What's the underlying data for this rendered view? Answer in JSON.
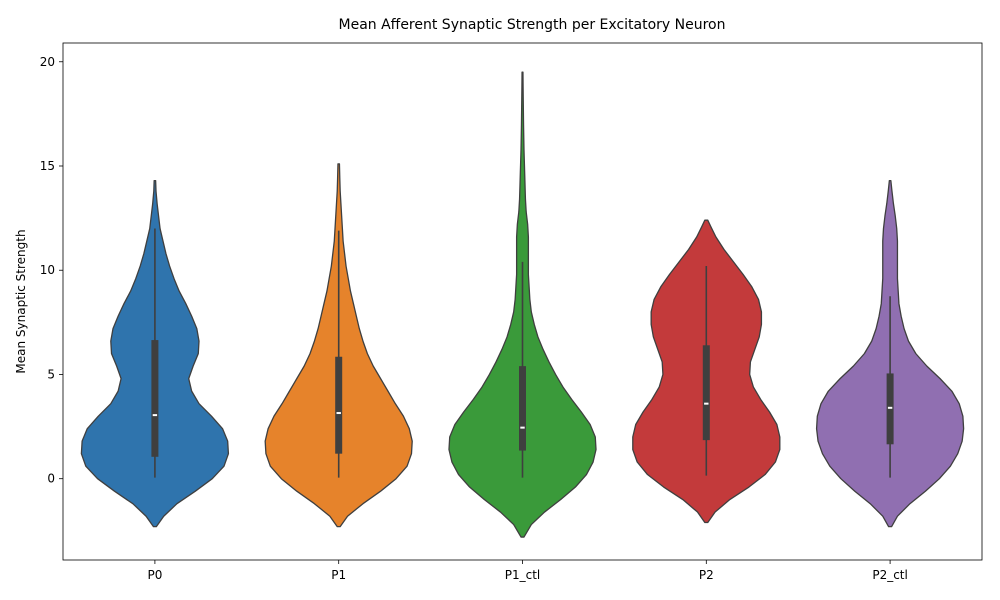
{
  "chart_data": {
    "type": "violin",
    "title": "Mean Afferent Synaptic Strength per Excitatory Neuron",
    "xlabel": "",
    "ylabel": "Mean Synaptic Strength",
    "ylim": [
      -3.9,
      20.9
    ],
    "yticks": [
      0,
      5,
      10,
      15,
      20
    ],
    "grid": false,
    "legend": "none",
    "categories": [
      "P0",
      "P1",
      "P1_ctl",
      "P2",
      "P2_ctl"
    ],
    "colors": [
      "#2f74ad",
      "#e6832b",
      "#3a9a3a",
      "#c33a3b",
      "#906fb1"
    ],
    "series": [
      {
        "category": "P0",
        "color": "#2f74ad",
        "min": 0.05,
        "q1": 1.05,
        "median": 3.05,
        "q3": 6.65,
        "max": 12.0,
        "profile": [
          [
            -2.3,
            0.02
          ],
          [
            -1.8,
            0.12
          ],
          [
            -1.2,
            0.3
          ],
          [
            -0.6,
            0.55
          ],
          [
            0.0,
            0.78
          ],
          [
            0.6,
            0.94
          ],
          [
            1.2,
            1.0
          ],
          [
            1.8,
            0.99
          ],
          [
            2.4,
            0.92
          ],
          [
            3.0,
            0.77
          ],
          [
            3.6,
            0.6
          ],
          [
            4.2,
            0.5
          ],
          [
            4.8,
            0.46
          ],
          [
            5.4,
            0.52
          ],
          [
            6.0,
            0.59
          ],
          [
            6.6,
            0.6
          ],
          [
            7.2,
            0.57
          ],
          [
            7.8,
            0.5
          ],
          [
            8.4,
            0.42
          ],
          [
            9.0,
            0.33
          ],
          [
            9.6,
            0.26
          ],
          [
            10.2,
            0.2
          ],
          [
            10.8,
            0.15
          ],
          [
            11.4,
            0.11
          ],
          [
            12.0,
            0.07
          ],
          [
            12.6,
            0.05
          ],
          [
            13.2,
            0.03
          ],
          [
            13.8,
            0.015
          ],
          [
            14.3,
            0.01
          ]
        ]
      },
      {
        "category": "P1",
        "color": "#e6832b",
        "min": 0.05,
        "q1": 1.2,
        "median": 3.15,
        "q3": 5.85,
        "max": 11.9,
        "profile": [
          [
            -2.3,
            0.02
          ],
          [
            -1.8,
            0.12
          ],
          [
            -1.2,
            0.33
          ],
          [
            -0.6,
            0.57
          ],
          [
            0.0,
            0.78
          ],
          [
            0.6,
            0.93
          ],
          [
            1.2,
            0.99
          ],
          [
            1.8,
            1.0
          ],
          [
            2.4,
            0.96
          ],
          [
            3.0,
            0.88
          ],
          [
            3.6,
            0.77
          ],
          [
            4.2,
            0.67
          ],
          [
            4.8,
            0.57
          ],
          [
            5.4,
            0.47
          ],
          [
            6.0,
            0.39
          ],
          [
            6.6,
            0.33
          ],
          [
            7.2,
            0.28
          ],
          [
            7.8,
            0.24
          ],
          [
            8.4,
            0.2
          ],
          [
            9.0,
            0.16
          ],
          [
            9.6,
            0.13
          ],
          [
            10.2,
            0.1
          ],
          [
            10.8,
            0.08
          ],
          [
            11.4,
            0.06
          ],
          [
            12.0,
            0.05
          ],
          [
            12.6,
            0.04
          ],
          [
            13.2,
            0.03
          ],
          [
            13.8,
            0.02
          ],
          [
            14.4,
            0.015
          ],
          [
            15.1,
            0.01
          ]
        ]
      },
      {
        "category": "P1_ctl",
        "color": "#3a9a3a",
        "min": 0.05,
        "q1": 1.35,
        "median": 2.45,
        "q3": 5.4,
        "max": 10.4,
        "profile": [
          [
            -2.8,
            0.02
          ],
          [
            -2.2,
            0.12
          ],
          [
            -1.6,
            0.3
          ],
          [
            -1.0,
            0.52
          ],
          [
            -0.4,
            0.72
          ],
          [
            0.2,
            0.87
          ],
          [
            0.8,
            0.96
          ],
          [
            1.4,
            1.0
          ],
          [
            2.0,
            0.99
          ],
          [
            2.6,
            0.92
          ],
          [
            3.2,
            0.8
          ],
          [
            3.8,
            0.67
          ],
          [
            4.4,
            0.55
          ],
          [
            5.0,
            0.45
          ],
          [
            5.6,
            0.36
          ],
          [
            6.2,
            0.28
          ],
          [
            6.8,
            0.21
          ],
          [
            7.4,
            0.16
          ],
          [
            8.0,
            0.12
          ],
          [
            8.6,
            0.1
          ],
          [
            9.2,
            0.09
          ],
          [
            9.8,
            0.08
          ],
          [
            10.4,
            0.08
          ],
          [
            11.0,
            0.08
          ],
          [
            11.6,
            0.08
          ],
          [
            12.2,
            0.07
          ],
          [
            12.8,
            0.05
          ],
          [
            13.4,
            0.04
          ],
          [
            14.0,
            0.035
          ],
          [
            14.6,
            0.03
          ],
          [
            15.2,
            0.025
          ],
          [
            15.8,
            0.02
          ],
          [
            16.4,
            0.017
          ],
          [
            17.0,
            0.014
          ],
          [
            17.6,
            0.012
          ],
          [
            18.2,
            0.01
          ],
          [
            18.8,
            0.008
          ],
          [
            19.5,
            0.006
          ]
        ]
      },
      {
        "category": "P2",
        "color": "#c33a3b",
        "min": 0.15,
        "q1": 1.85,
        "median": 3.6,
        "q3": 6.4,
        "max": 10.2,
        "profile": [
          [
            -2.1,
            0.02
          ],
          [
            -1.6,
            0.12
          ],
          [
            -1.0,
            0.32
          ],
          [
            -0.4,
            0.58
          ],
          [
            0.2,
            0.8
          ],
          [
            0.8,
            0.94
          ],
          [
            1.4,
            1.0
          ],
          [
            2.0,
            1.0
          ],
          [
            2.6,
            0.96
          ],
          [
            3.2,
            0.86
          ],
          [
            3.8,
            0.74
          ],
          [
            4.4,
            0.64
          ],
          [
            5.0,
            0.59
          ],
          [
            5.6,
            0.6
          ],
          [
            6.2,
            0.66
          ],
          [
            6.8,
            0.72
          ],
          [
            7.4,
            0.75
          ],
          [
            8.0,
            0.75
          ],
          [
            8.6,
            0.71
          ],
          [
            9.2,
            0.62
          ],
          [
            9.8,
            0.5
          ],
          [
            10.4,
            0.37
          ],
          [
            11.0,
            0.24
          ],
          [
            11.6,
            0.13
          ],
          [
            12.1,
            0.06
          ],
          [
            12.4,
            0.02
          ]
        ]
      },
      {
        "category": "P2_ctl",
        "color": "#906fb1",
        "min": 0.05,
        "q1": 1.65,
        "median": 3.4,
        "q3": 5.05,
        "max": 8.75,
        "profile": [
          [
            -2.3,
            0.02
          ],
          [
            -1.8,
            0.1
          ],
          [
            -1.2,
            0.27
          ],
          [
            -0.6,
            0.48
          ],
          [
            0.0,
            0.67
          ],
          [
            0.6,
            0.82
          ],
          [
            1.2,
            0.92
          ],
          [
            1.8,
            0.98
          ],
          [
            2.4,
            1.0
          ],
          [
            3.0,
            0.99
          ],
          [
            3.6,
            0.94
          ],
          [
            4.2,
            0.84
          ],
          [
            4.8,
            0.68
          ],
          [
            5.4,
            0.5
          ],
          [
            6.0,
            0.35
          ],
          [
            6.6,
            0.25
          ],
          [
            7.2,
            0.19
          ],
          [
            7.8,
            0.15
          ],
          [
            8.4,
            0.12
          ],
          [
            9.0,
            0.11
          ],
          [
            9.6,
            0.1
          ],
          [
            10.2,
            0.1
          ],
          [
            10.8,
            0.1
          ],
          [
            11.4,
            0.1
          ],
          [
            12.0,
            0.09
          ],
          [
            12.6,
            0.07
          ],
          [
            13.2,
            0.045
          ],
          [
            13.8,
            0.025
          ],
          [
            14.3,
            0.01
          ]
        ]
      }
    ]
  }
}
